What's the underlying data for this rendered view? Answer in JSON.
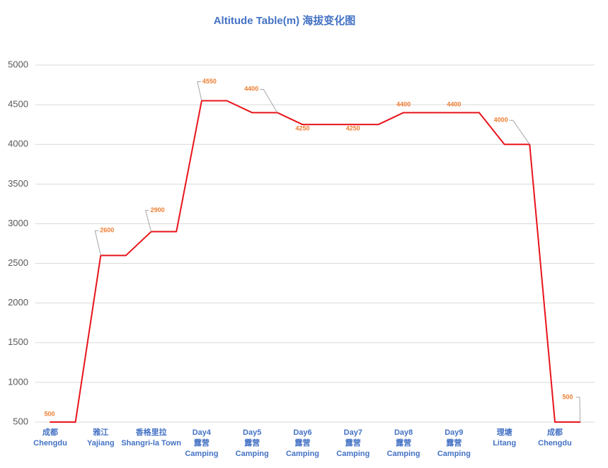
{
  "chart_data": {
    "type": "line",
    "title": "Altitude Table(m) 海拔变化图",
    "categories": [
      "成都\nChengdu",
      "雅江\nYajiang",
      "香格里拉\nShangri-la Town",
      "Day4\n露营\nCamping",
      "Day5\n露营\nCamping",
      "Day6\n露营\nCamping",
      "Day7\n露营\nCamping",
      "Day8\n露营\nCamping",
      "Day9\n露营\nCamping",
      "理塘\nLitang",
      "成都\nChengdu"
    ],
    "series": [
      {
        "name": "Altitude",
        "color": "#e8141b",
        "values": [
          500,
          2600,
          2900,
          4550,
          4400,
          4250,
          4250,
          4400,
          4400,
          4000,
          500
        ]
      }
    ],
    "ylim": [
      500,
      5000
    ],
    "yticks": [
      500,
      1000,
      1500,
      2000,
      2500,
      3000,
      3500,
      4000,
      4500,
      5000
    ],
    "grid": true
  }
}
